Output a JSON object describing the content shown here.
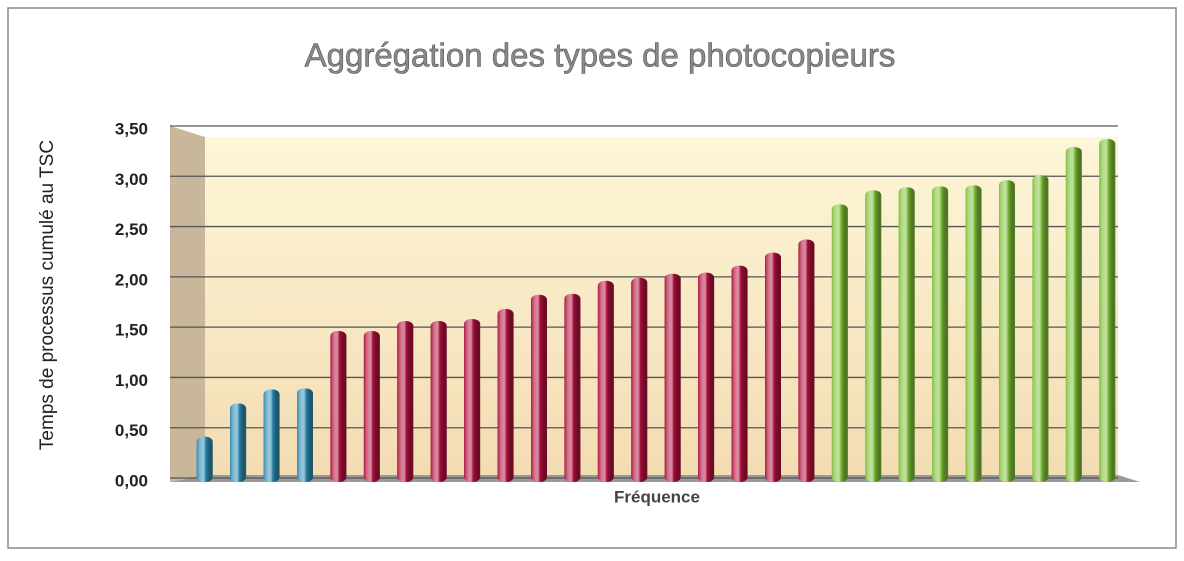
{
  "chart_data": {
    "type": "bar",
    "title": "Aggrégation des types de photocopieurs",
    "x_label": "Fréquence",
    "y_label": "Temps de processus cumulé au TSC",
    "categories": [
      null,
      null,
      null,
      null,
      null,
      null,
      null,
      null,
      null,
      null,
      null,
      null,
      null,
      null,
      null,
      null,
      null,
      null,
      null,
      null,
      null,
      null,
      null,
      null,
      null,
      null,
      null,
      null
    ],
    "values": [
      0.45,
      0.78,
      0.92,
      0.93,
      1.5,
      1.5,
      1.6,
      1.6,
      1.62,
      1.72,
      1.86,
      1.87,
      2.0,
      2.03,
      2.07,
      2.08,
      2.15,
      2.28,
      2.41,
      2.76,
      2.9,
      2.93,
      2.94,
      2.95,
      3.0,
      3.05,
      3.33,
      3.41
    ],
    "colors": [
      "#2e8bb0",
      "#2e8bb0",
      "#2e8bb0",
      "#2e8bb0",
      "#b0123f",
      "#b0123f",
      "#b0123f",
      "#b0123f",
      "#b0123f",
      "#b0123f",
      "#b0123f",
      "#b0123f",
      "#b0123f",
      "#b0123f",
      "#b0123f",
      "#b0123f",
      "#b0123f",
      "#b0123f",
      "#b0123f",
      "#7fc03a",
      "#7fc03a",
      "#7fc03a",
      "#7fc03a",
      "#7fc03a",
      "#7fc03a",
      "#7fc03a",
      "#7fc03a",
      "#7fc03a"
    ],
    "ylim": [
      0,
      3.5
    ],
    "yticks": [
      {
        "value": 0,
        "label": "0,00"
      },
      {
        "value": 0.5,
        "label": "0,50"
      },
      {
        "value": 1,
        "label": "1,00"
      },
      {
        "value": 1.5,
        "label": "1,50"
      },
      {
        "value": 2,
        "label": "2,00"
      },
      {
        "value": 2.5,
        "label": "2,50"
      },
      {
        "value": 3,
        "label": "3,00"
      },
      {
        "value": 3.5,
        "label": "3,50"
      }
    ],
    "grid": true
  }
}
